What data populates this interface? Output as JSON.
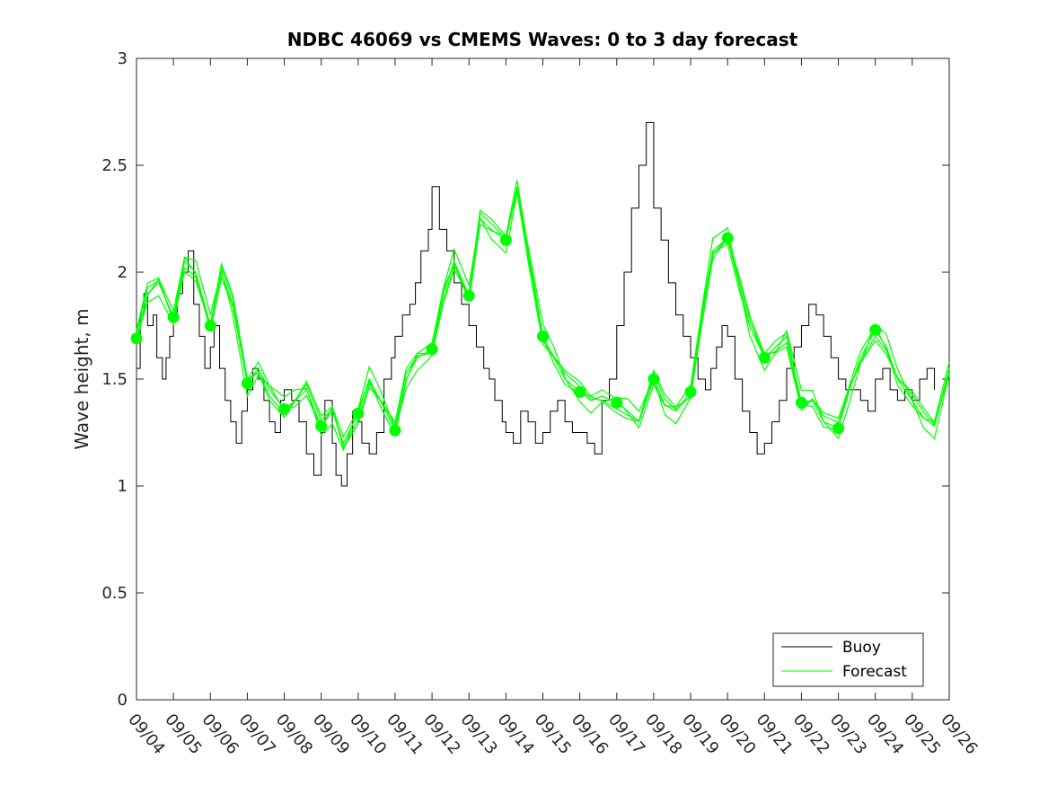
{
  "chart_data": {
    "type": "line",
    "title": "NDBC 46069 vs CMEMS Waves: 0 to 3 day forecast",
    "xlabel": "",
    "ylabel": "Wave height, m",
    "ylim": [
      0,
      3
    ],
    "yticks": [
      "0",
      "0.5",
      "1",
      "1.5",
      "2",
      "2.5",
      "3"
    ],
    "xticks": [
      "09/04",
      "09/05",
      "09/06",
      "09/07",
      "09/08",
      "09/09",
      "09/10",
      "09/11",
      "09/12",
      "09/13",
      "09/14",
      "09/15",
      "09/16",
      "09/17",
      "09/18",
      "09/19",
      "09/20",
      "09/21",
      "09/22",
      "09/23",
      "09/24",
      "09/25",
      "09/26"
    ],
    "x_unit": "days since 09/04 00:00",
    "xlim": [
      0,
      22
    ],
    "grid": false,
    "legend_position": "bottom-right",
    "colors": {
      "buoy": "#000000",
      "forecast": "#00ff00",
      "axes": "#262626"
    },
    "series": [
      {
        "name": "Buoy",
        "x": [
          0,
          0.1,
          0.2,
          0.3,
          0.45,
          0.55,
          0.7,
          0.8,
          0.9,
          1.0,
          1.1,
          1.25,
          1.4,
          1.55,
          1.7,
          1.85,
          2.0,
          2.1,
          2.25,
          2.4,
          2.55,
          2.7,
          2.85,
          3.0,
          3.15,
          3.3,
          3.45,
          3.6,
          3.75,
          3.9,
          4.0,
          4.2,
          4.4,
          4.6,
          4.8,
          5.0,
          5.1,
          5.3,
          5.4,
          5.55,
          5.7,
          5.85,
          6.0,
          6.1,
          6.3,
          6.5,
          6.7,
          6.9,
          7.0,
          7.2,
          7.4,
          7.55,
          7.7,
          7.9,
          8.0,
          8.2,
          8.4,
          8.6,
          8.8,
          9.0,
          9.2,
          9.4,
          9.55,
          9.7,
          9.9,
          10.0,
          10.2,
          10.4,
          10.6,
          10.8,
          11.0,
          11.2,
          11.4,
          11.6,
          11.8,
          12.0,
          12.2,
          12.4,
          12.6,
          12.8,
          13.0,
          13.2,
          13.4,
          13.6,
          13.8,
          14.0,
          14.2,
          14.4,
          14.6,
          14.8,
          15.0,
          15.2,
          15.4,
          15.55,
          15.7,
          15.85,
          16.0,
          16.2,
          16.4,
          16.6,
          16.8,
          17.0,
          17.2,
          17.4,
          17.6,
          17.8,
          18.0,
          18.2,
          18.4,
          18.6,
          18.8,
          19.0,
          19.2,
          19.4,
          19.6,
          19.8,
          20.0,
          20.2,
          20.4,
          20.6,
          20.8,
          21.0,
          21.2,
          21.4,
          21.6
        ],
        "values": [
          1.55,
          1.8,
          1.9,
          1.75,
          1.8,
          1.6,
          1.5,
          1.6,
          1.7,
          1.8,
          1.9,
          2.0,
          2.1,
          1.85,
          1.7,
          1.55,
          1.65,
          1.75,
          1.55,
          1.4,
          1.3,
          1.2,
          1.35,
          1.45,
          1.55,
          1.5,
          1.4,
          1.3,
          1.25,
          1.4,
          1.45,
          1.4,
          1.3,
          1.15,
          1.05,
          1.25,
          1.4,
          1.2,
          1.05,
          1.0,
          1.15,
          1.35,
          1.3,
          1.2,
          1.15,
          1.25,
          1.5,
          1.6,
          1.7,
          1.8,
          1.85,
          1.95,
          2.1,
          2.2,
          2.4,
          2.2,
          2.1,
          1.95,
          1.85,
          1.75,
          1.65,
          1.55,
          1.5,
          1.4,
          1.3,
          1.25,
          1.2,
          1.35,
          1.3,
          1.2,
          1.25,
          1.35,
          1.4,
          1.3,
          1.25,
          1.25,
          1.2,
          1.15,
          1.4,
          1.5,
          1.75,
          2.0,
          2.3,
          2.5,
          2.7,
          2.3,
          2.15,
          1.95,
          1.8,
          1.7,
          1.6,
          1.5,
          1.45,
          1.55,
          1.65,
          1.75,
          1.7,
          1.5,
          1.35,
          1.25,
          1.15,
          1.2,
          1.3,
          1.4,
          1.55,
          1.65,
          1.75,
          1.85,
          1.8,
          1.7,
          1.6,
          1.5,
          1.45,
          1.45,
          1.4,
          1.35,
          1.5,
          1.55,
          1.45,
          1.4,
          1.45,
          1.4,
          1.5,
          1.55,
          1.45
        ]
      },
      {
        "name": "Forecast",
        "x": [
          0,
          0.3,
          0.6,
          1.0,
          1.3,
          1.6,
          2.0,
          2.3,
          2.6,
          3.0,
          3.3,
          3.6,
          4.0,
          4.3,
          4.6,
          5.0,
          5.3,
          5.6,
          6.0,
          6.3,
          6.6,
          7.0,
          7.3,
          7.6,
          8.0,
          8.3,
          8.6,
          9.0,
          9.3,
          9.6,
          10.0,
          10.3,
          10.6,
          11.0,
          11.3,
          11.6,
          12.0,
          12.3,
          12.6,
          13.0,
          13.3,
          13.6,
          14.0,
          14.3,
          14.6,
          15.0,
          15.3,
          15.6,
          16.0,
          16.3,
          16.6,
          17.0,
          17.3,
          17.6,
          18.0,
          18.3,
          18.6,
          19.0,
          19.3,
          19.6,
          20.0,
          20.3,
          20.6,
          21.0,
          21.3,
          21.6,
          22.0
        ],
        "values": [
          1.69,
          1.9,
          1.95,
          1.79,
          2.05,
          2.0,
          1.75,
          2.0,
          1.85,
          1.48,
          1.55,
          1.45,
          1.36,
          1.4,
          1.45,
          1.28,
          1.35,
          1.2,
          1.34,
          1.5,
          1.4,
          1.26,
          1.5,
          1.6,
          1.64,
          1.9,
          2.05,
          1.89,
          2.25,
          2.2,
          2.15,
          2.4,
          2.1,
          1.7,
          1.6,
          1.5,
          1.44,
          1.4,
          1.42,
          1.39,
          1.35,
          1.3,
          1.5,
          1.38,
          1.35,
          1.44,
          1.8,
          2.1,
          2.16,
          1.95,
          1.75,
          1.6,
          1.65,
          1.7,
          1.39,
          1.4,
          1.3,
          1.27,
          1.45,
          1.6,
          1.73,
          1.65,
          1.5,
          1.4,
          1.32,
          1.28,
          1.55
        ]
      }
    ],
    "markers": {
      "series": "Forecast",
      "x": [
        0,
        1,
        2,
        3,
        4,
        5,
        6,
        7,
        8,
        9,
        10,
        11,
        12,
        13,
        14,
        15,
        16,
        17,
        18,
        19,
        20
      ],
      "values": [
        1.69,
        1.79,
        1.75,
        1.48,
        1.36,
        1.28,
        1.34,
        1.26,
        1.64,
        1.89,
        2.15,
        1.7,
        1.44,
        1.39,
        1.5,
        1.44,
        2.16,
        1.6,
        1.39,
        1.27,
        1.73
      ]
    }
  }
}
